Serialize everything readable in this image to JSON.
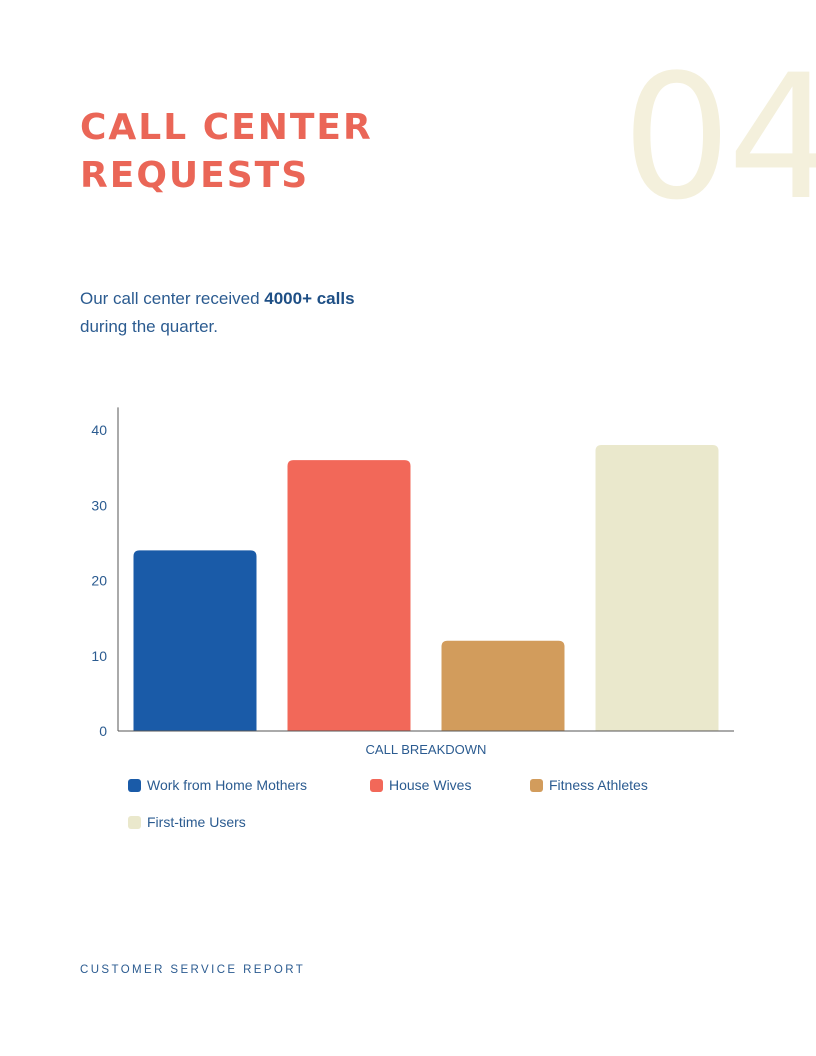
{
  "page_number": "04",
  "title_lines": [
    "CALL CENTER",
    "REQUESTS"
  ],
  "intro": {
    "prefix": "Our call center received ",
    "highlight": "4000+ calls",
    "suffix": "during the quarter."
  },
  "footer": "CUSTOMER SERVICE REPORT",
  "colors": {
    "accent": "#ea6657",
    "text": "#2b5b90",
    "page_number": "#f4f0dc"
  },
  "chart_data": {
    "type": "bar",
    "xlabel": "CALL BREAKDOWN",
    "ylabel": "",
    "ylim": [
      0,
      43
    ],
    "yticks": [
      0,
      10,
      20,
      30,
      40
    ],
    "grid": false,
    "legend_placement": "bottom",
    "series": [
      {
        "name": "Work from Home Mothers",
        "value": 24,
        "color": "#1a5ba8"
      },
      {
        "name": "House Wives",
        "value": 36,
        "color": "#f26859"
      },
      {
        "name": "Fitness Athletes",
        "value": 12,
        "color": "#d29c5c"
      },
      {
        "name": "First-time Users",
        "value": 38,
        "color": "#eae8cc"
      }
    ]
  }
}
